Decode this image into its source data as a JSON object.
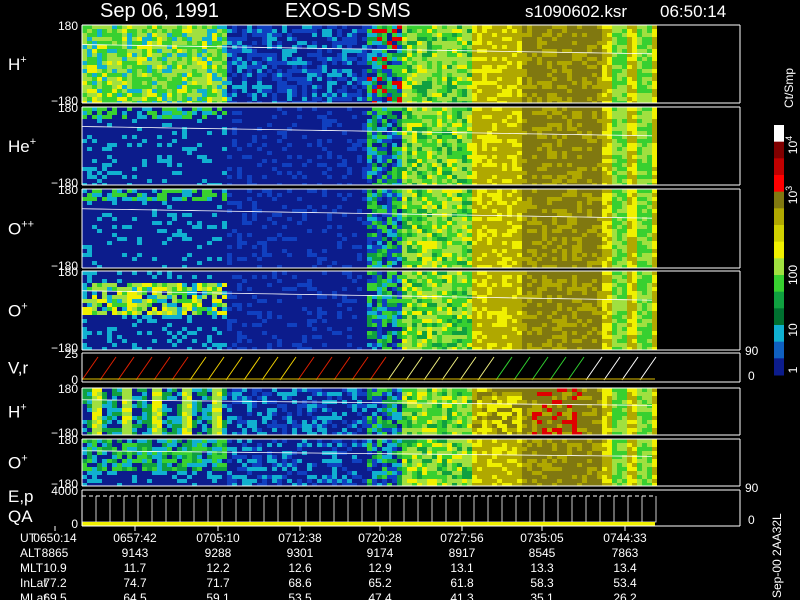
{
  "header": {
    "date": "Sep 06, 1991",
    "instrument": "EXOS-D SMS",
    "file": "s1090602.ksr",
    "time": "06:50:14"
  },
  "panels": [
    {
      "label": "H",
      "sup": "+",
      "top": "180",
      "bottom": "−180"
    },
    {
      "label": "He",
      "sup": "+",
      "top": "180",
      "bottom": "−180"
    },
    {
      "label": "O",
      "sup": "++",
      "top": "180",
      "bottom": "−180"
    },
    {
      "label": "O",
      "sup": "+",
      "top": "180",
      "bottom": "−180"
    },
    {
      "label": "V,r",
      "top": "25",
      "bottom": "0",
      "right_top": "90",
      "right_bottom": "0"
    },
    {
      "label": "H",
      "sup": "+",
      "top": "180",
      "bottom": "−180"
    },
    {
      "label": "O",
      "sup": "+",
      "top": "180",
      "bottom": "−180"
    },
    {
      "label": "E,p",
      "label2": "QA",
      "top": "4000",
      "bottom": "0",
      "right_top": "90",
      "right_bottom": "0"
    }
  ],
  "colorbar": {
    "unit": "Ct/Smp",
    "labels": [
      {
        "base": "10",
        "exp": "4"
      },
      {
        "base": "10",
        "exp": "3"
      },
      {
        "text": "100"
      },
      {
        "text": "10"
      },
      {
        "text": "1"
      }
    ]
  },
  "orbit": {
    "rows": [
      {
        "name": "UT",
        "values": [
          "0650:14",
          "0657:42",
          "0705:10",
          "0712:38",
          "0720:28",
          "0727:56",
          "0735:05",
          "0744:33"
        ]
      },
      {
        "name": "ALT",
        "values": [
          "8865",
          "9143",
          "9288",
          "9301",
          "9174",
          "8917",
          "8545",
          "7863"
        ]
      },
      {
        "name": "MLT",
        "values": [
          "10.9",
          "11.7",
          "12.2",
          "12.6",
          "12.9",
          "13.1",
          "13.3",
          "13.4"
        ]
      },
      {
        "name": "InLat",
        "values": [
          "77.2",
          "74.7",
          "71.7",
          "68.6",
          "65.2",
          "61.8",
          "58.3",
          "53.4"
        ]
      },
      {
        "name": "MLat",
        "values": [
          "69.5",
          "64.5",
          "59.1",
          "53.5",
          "47.4",
          "41.3",
          "35.1",
          "26.2"
        ]
      }
    ]
  },
  "footer": "Sep-00 2AA32L"
}
